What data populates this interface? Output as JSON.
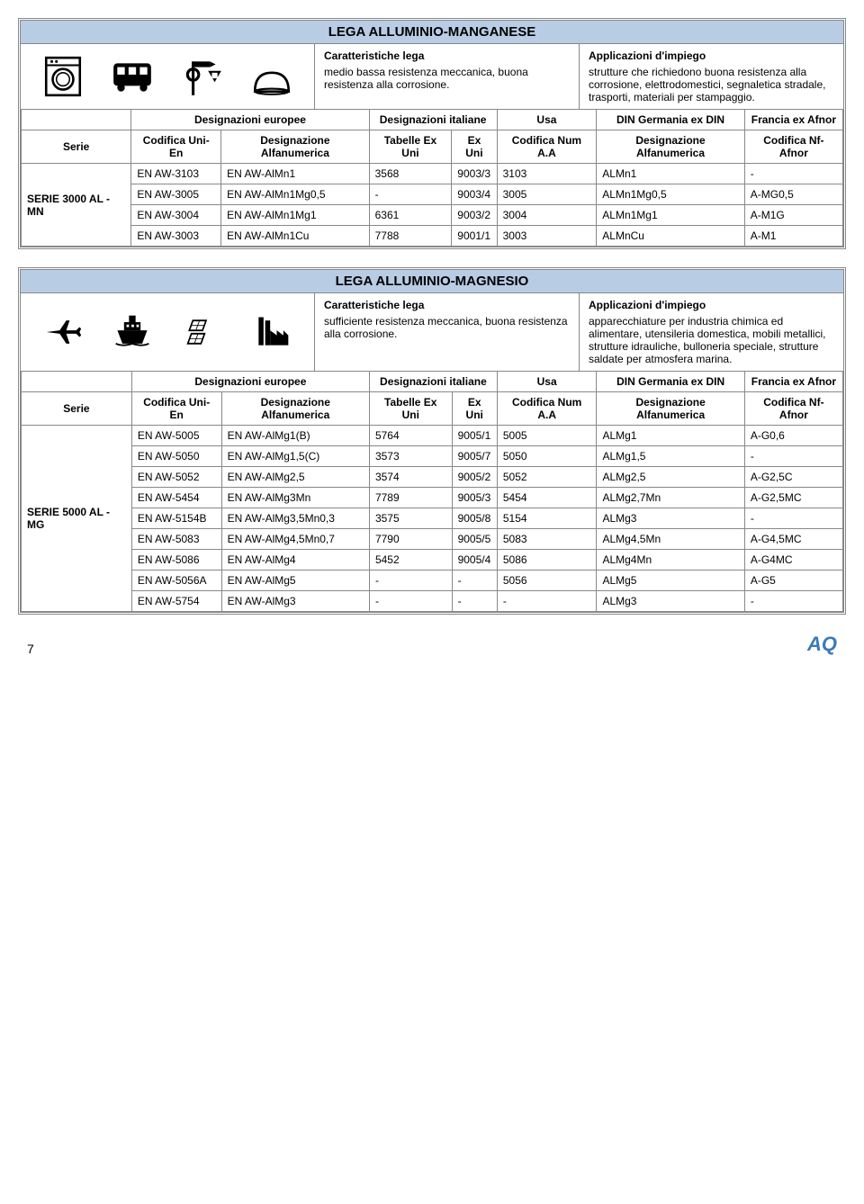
{
  "section1": {
    "title": "LEGA ALLUMINIO-MANGANESE",
    "char_head": "Caratteristiche lega",
    "char_text": "medio bassa resistenza meccanica, buona resistenza alla corrosione.",
    "app_head": "Applicazioni d'impiego",
    "app_text": "strutture che richiedono buona resistenza alla corrosione, elettrodomestici, segnaletica stradale, trasporti, materiali per stampaggio.",
    "serie": "SERIE 3000 AL - MN",
    "headers": {
      "blank": "",
      "des_eur": "Designazioni europee",
      "des_ita": "Designazioni italiane",
      "usa": "Usa",
      "din": "DIN Germania ex DIN",
      "afnor": "Francia ex Afnor",
      "serie": "Serie",
      "cod_unien": "Codifica Uni-En",
      "des_alfa1": "Designazione Alfanumerica",
      "tab_exuni": "Tabelle Ex Uni",
      "ex_uni": "Ex Uni",
      "cod_numaa": "Codifica Num A.A",
      "des_alfa2": "Designazione Alfanumerica",
      "cod_nfafnor": "Codifica Nf-Afnor"
    },
    "rows": [
      [
        "EN AW-3103",
        "EN AW-AlMn1",
        "3568",
        "9003/3",
        "3103",
        "ALMn1",
        "-"
      ],
      [
        "EN AW-3005",
        "EN AW-AlMn1Mg0,5",
        "-",
        "9003/4",
        "3005",
        "ALMn1Mg0,5",
        "A-MG0,5"
      ],
      [
        "EN AW-3004",
        "EN AW-AlMn1Mg1",
        "6361",
        "9003/2",
        "3004",
        "ALMn1Mg1",
        "A-M1G"
      ],
      [
        "EN AW-3003",
        "EN AW-AlMn1Cu",
        "7788",
        "9001/1",
        "3003",
        "ALMnCu",
        "A-M1"
      ]
    ]
  },
  "section2": {
    "title": "LEGA ALLUMINIO-MAGNESIO",
    "char_head": "Caratteristiche lega",
    "char_text": "sufficiente resistenza meccanica, buona resistenza alla corrosione.",
    "app_head": "Applicazioni d'impiego",
    "app_text": "apparecchiature per industria chimica ed alimentare, utensileria domestica, mobili metallici, strutture idrauliche, bulloneria speciale, strutture saldate per atmosfera marina.",
    "serie": "SERIE 5000 AL - MG",
    "rows": [
      [
        "EN AW-5005",
        "EN AW-AlMg1(B)",
        "5764",
        "9005/1",
        "5005",
        "ALMg1",
        "A-G0,6"
      ],
      [
        "EN AW-5050",
        "EN AW-AlMg1,5(C)",
        "3573",
        "9005/7",
        "5050",
        "ALMg1,5",
        "-"
      ],
      [
        "EN AW-5052",
        "EN AW-AlMg2,5",
        "3574",
        "9005/2",
        "5052",
        "ALMg2,5",
        "A-G2,5C"
      ],
      [
        "EN AW-5454",
        "EN AW-AlMg3Mn",
        "7789",
        "9005/3",
        "5454",
        "ALMg2,7Mn",
        "A-G2,5MC"
      ],
      [
        "EN AW-5154B",
        "EN AW-AlMg3,5Mn0,3",
        "3575",
        "9005/8",
        "5154",
        "ALMg3",
        "-"
      ],
      [
        "EN AW-5083",
        "EN AW-AlMg4,5Mn0,7",
        "7790",
        "9005/5",
        "5083",
        "ALMg4,5Mn",
        "A-G4,5MC"
      ],
      [
        "EN AW-5086",
        "EN AW-AlMg4",
        "5452",
        "9005/4",
        "5086",
        "ALMg4Mn",
        "A-G4MC"
      ],
      [
        "EN AW-5056A",
        "EN AW-AlMg5",
        "-",
        "-",
        "5056",
        "ALMg5",
        "A-G5"
      ],
      [
        "EN AW-5754",
        "EN AW-AlMg3",
        "-",
        "-",
        "-",
        "ALMg3",
        "-"
      ]
    ]
  },
  "footer": {
    "page": "7",
    "logo": "AQ"
  },
  "colors": {
    "title_bg": "#b8cce4",
    "border": "#888888",
    "logo": "#3a7ab8"
  }
}
